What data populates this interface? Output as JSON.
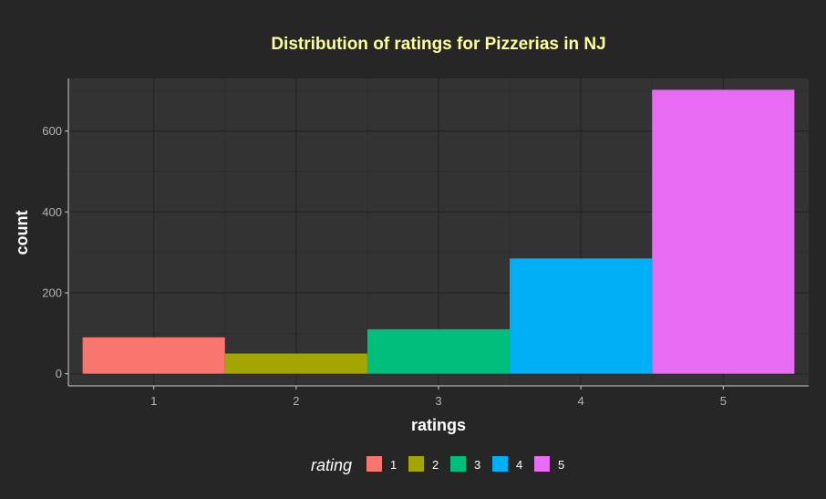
{
  "chart_data": {
    "type": "bar",
    "title": "Distribution of ratings for Pizzerias in NJ",
    "xlabel": "ratings",
    "ylabel": "count",
    "categories": [
      "1",
      "2",
      "3",
      "4",
      "5"
    ],
    "values": [
      90,
      50,
      110,
      285,
      702
    ],
    "colors": [
      "#f8766d",
      "#a3a500",
      "#00bf7d",
      "#00b0f6",
      "#e76bf3"
    ],
    "ylim": [
      -30,
      730
    ],
    "yticks": [
      0,
      200,
      400,
      600
    ],
    "grid": true,
    "legend": {
      "title": "rating",
      "placement": "bottom",
      "labels": [
        "1",
        "2",
        "3",
        "4",
        "5"
      ]
    }
  }
}
